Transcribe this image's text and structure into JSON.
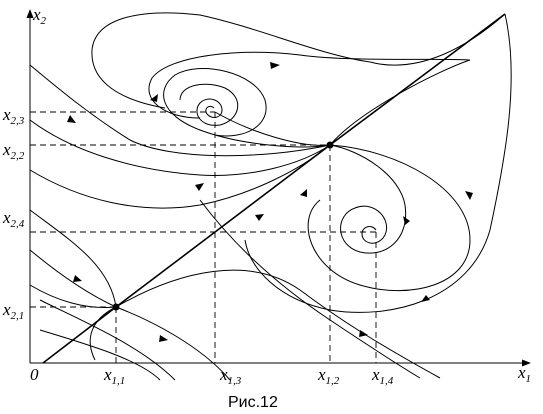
{
  "axes": {
    "x_axis_label": "x",
    "x_axis_label_sub": "1",
    "y_axis_label": "x",
    "y_axis_label_sub": "2",
    "origin_label": "0"
  },
  "x_ticks": [
    {
      "main": "x",
      "sub": "1,1"
    },
    {
      "main": "x",
      "sub": "1,3"
    },
    {
      "main": "x",
      "sub": "1,2"
    },
    {
      "main": "x",
      "sub": "1,4"
    }
  ],
  "y_ticks": [
    {
      "main": "x",
      "sub": "2,3"
    },
    {
      "main": "x",
      "sub": "2,2"
    },
    {
      "main": "x",
      "sub": "2,4"
    },
    {
      "main": "x",
      "sub": "2,1"
    }
  ],
  "caption": "Рис.12"
}
